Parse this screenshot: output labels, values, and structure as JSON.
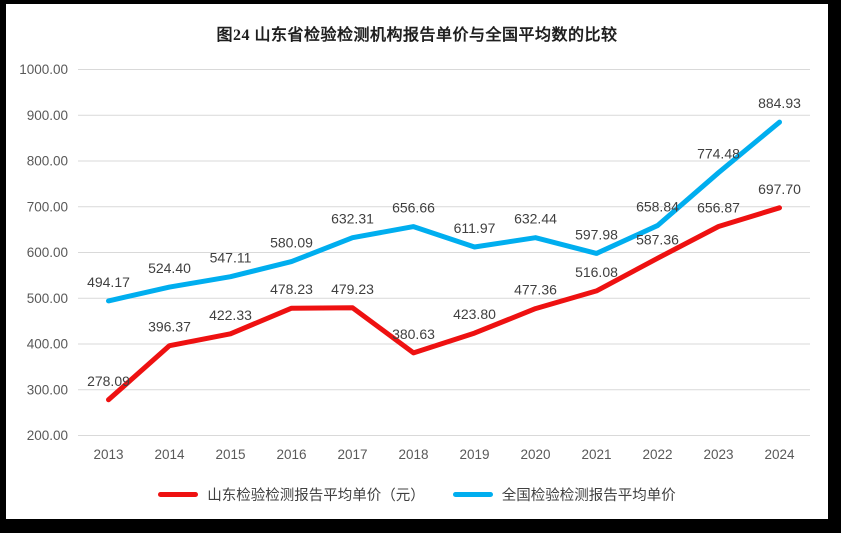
{
  "page": {
    "outer_background": "#000000",
    "panel_background": "#ffffff"
  },
  "chart_data": {
    "type": "line",
    "title": "图24  山东省检验检测机构报告单价与全国平均数的比较",
    "title_color": "#1f1f1f",
    "categories": [
      "2013",
      "2014",
      "2015",
      "2016",
      "2017",
      "2018",
      "2019",
      "2020",
      "2021",
      "2022",
      "2023",
      "2024"
    ],
    "series": [
      {
        "name": "山东检验检测报告平均单价（元）",
        "color": "#ee1111",
        "values": [
          278.09,
          396.37,
          422.33,
          478.23,
          479.23,
          380.63,
          423.8,
          477.36,
          516.08,
          587.36,
          656.87,
          697.7
        ]
      },
      {
        "name": "全国检验检测报告平均单价",
        "color": "#00aeef",
        "values": [
          494.17,
          524.4,
          547.11,
          580.09,
          632.31,
          656.66,
          611.97,
          632.44,
          597.98,
          658.84,
          774.48,
          884.93
        ]
      }
    ],
    "ylim": [
      200,
      1000
    ],
    "ytick_step": 100,
    "ytick_labels": [
      "200.00",
      "300.00",
      "400.00",
      "500.00",
      "600.00",
      "700.00",
      "800.00",
      "900.00",
      "1000.00"
    ],
    "data_label_decimals": 2,
    "grid": "horizontal",
    "gridline_color": "#d9d9d9",
    "axis_label_color": "#595959",
    "data_label_color": "#404040",
    "legend_position": "bottom",
    "line_width": 5
  }
}
